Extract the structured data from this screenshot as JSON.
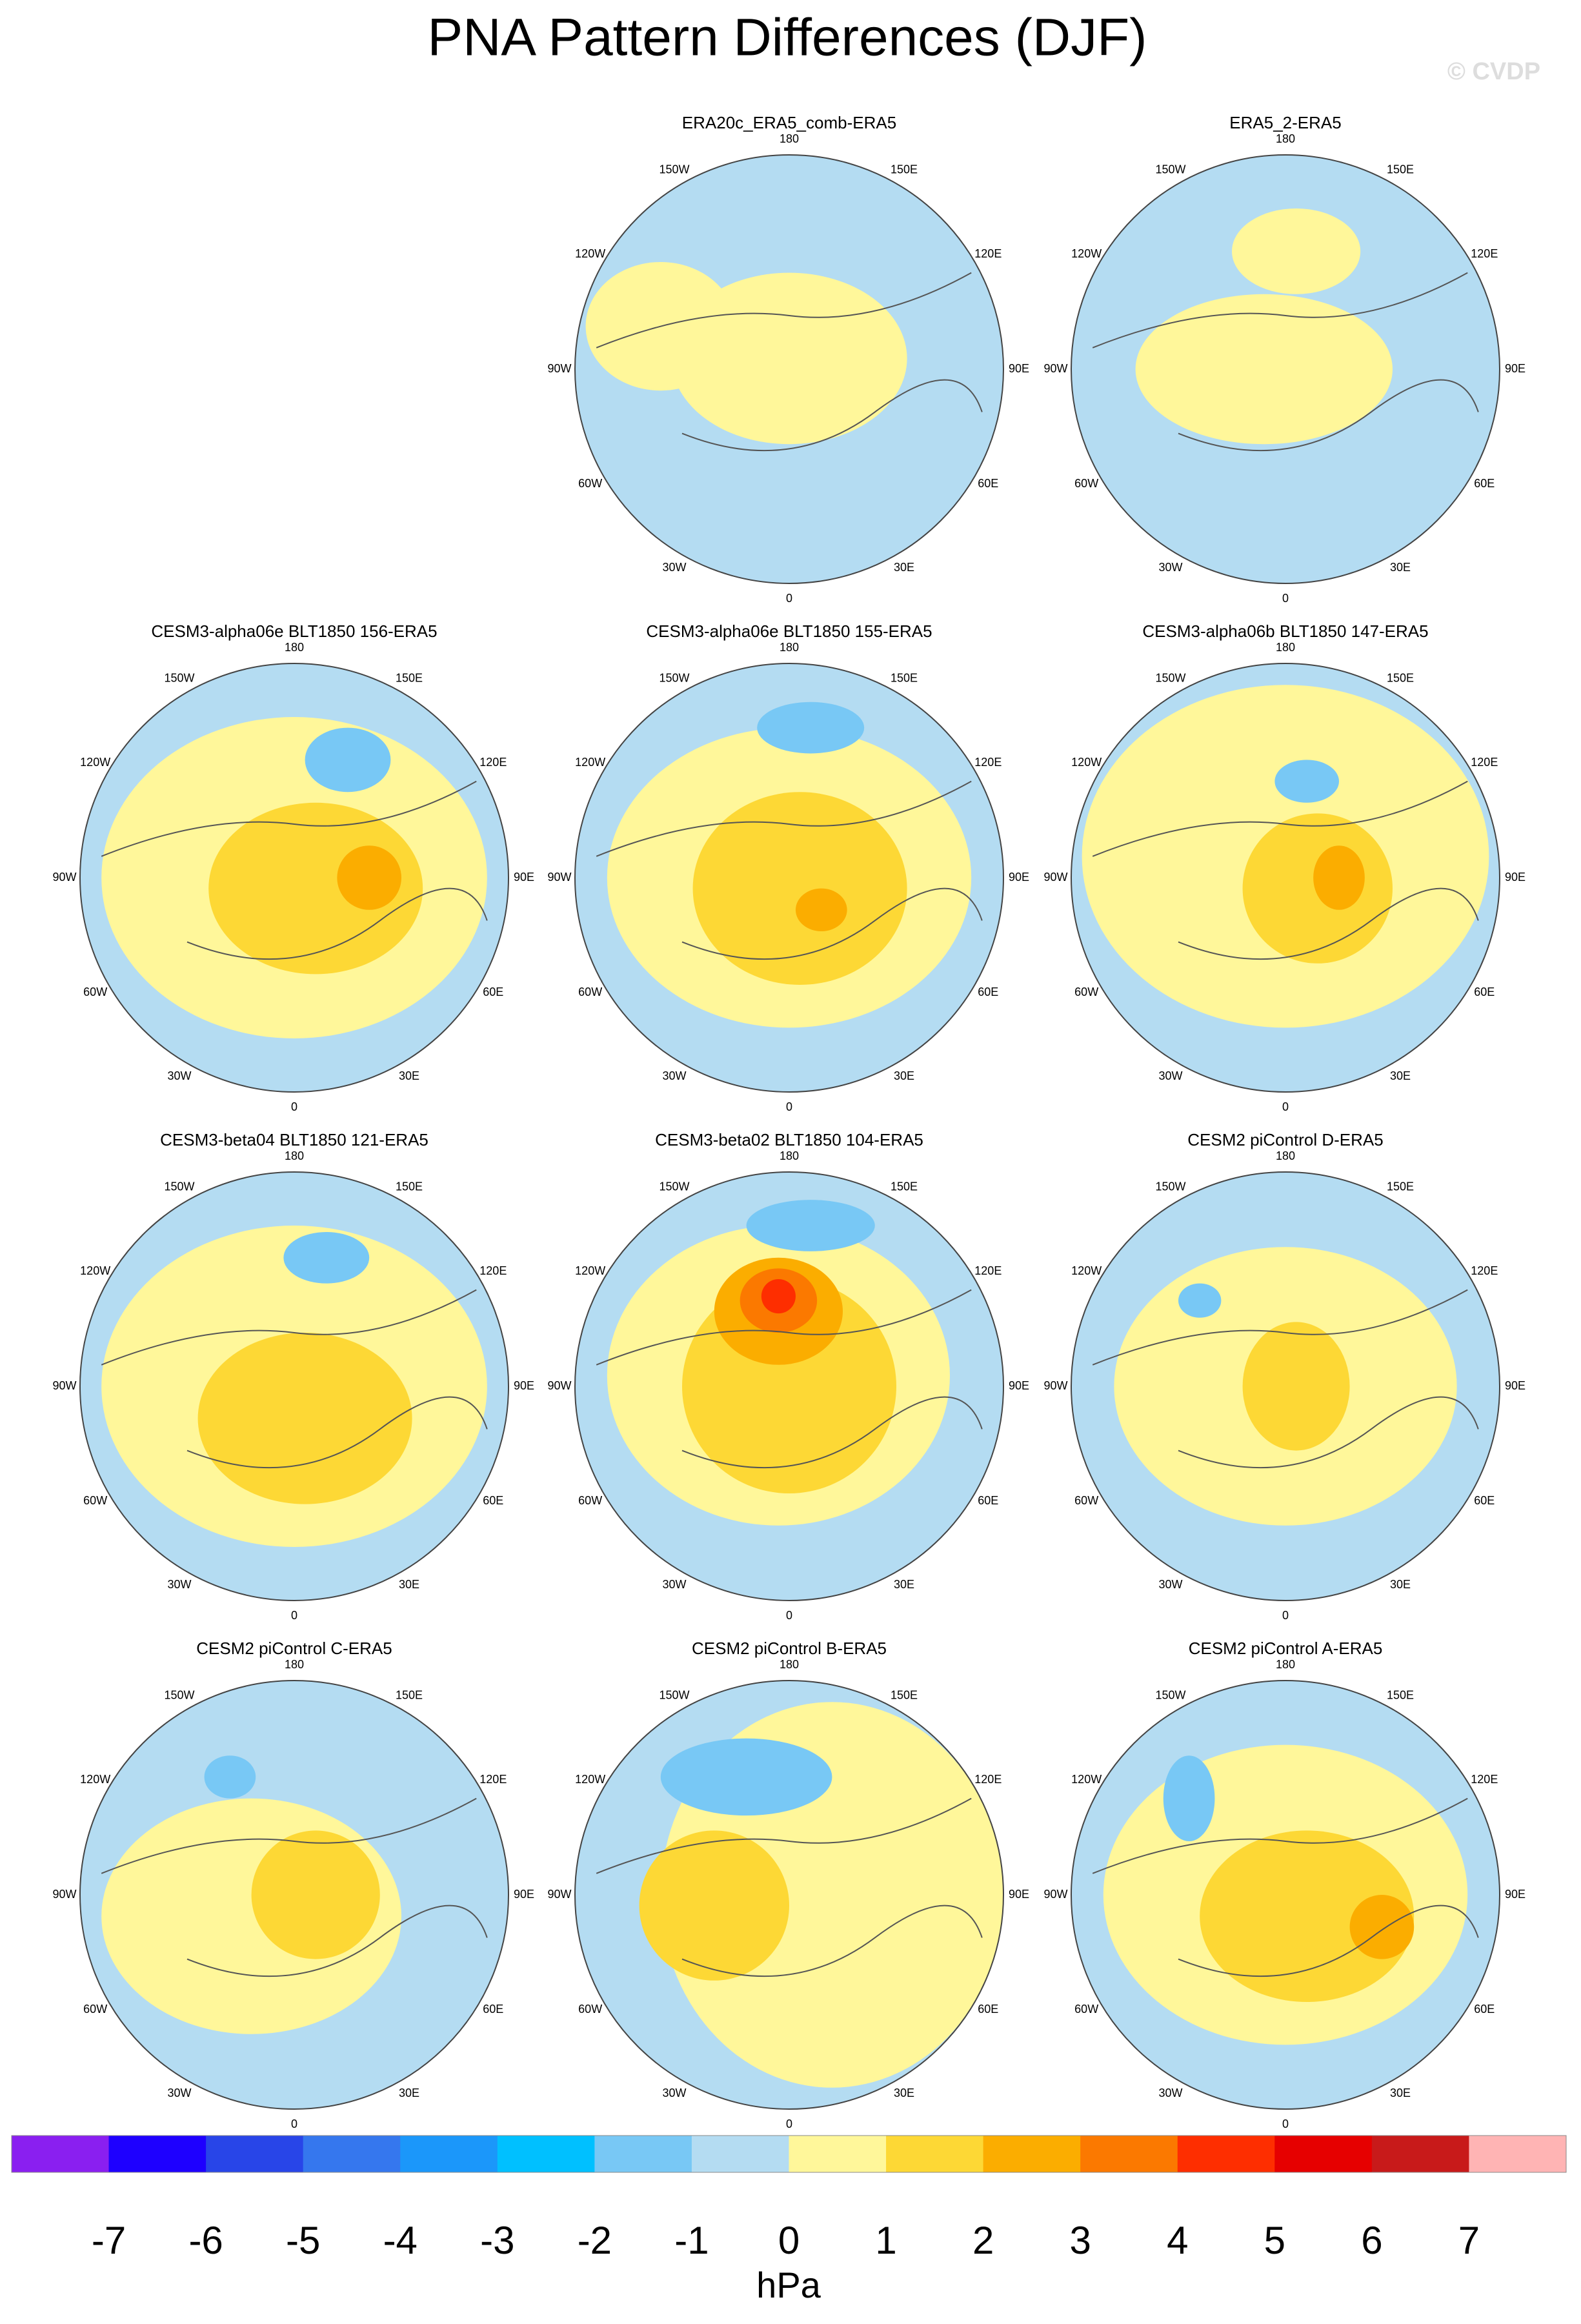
{
  "title": "PNA Pattern Differences (DJF)",
  "watermark": "© CVDP",
  "panels": [
    {
      "title": "ERA20c_ERA5_comb-ERA5"
    },
    {
      "title": "ERA5_2-ERA5"
    },
    {
      "title": "CESM3-alpha06e BLT1850 156-ERA5"
    },
    {
      "title": "CESM3-alpha06e BLT1850 155-ERA5"
    },
    {
      "title": "CESM3-alpha06b BLT1850 147-ERA5"
    },
    {
      "title": "CESM3-beta04 BLT1850 121-ERA5"
    },
    {
      "title": "CESM3-beta02 BLT1850 104-ERA5"
    },
    {
      "title": "CESM2 piControl D-ERA5"
    },
    {
      "title": "CESM2 piControl C-ERA5"
    },
    {
      "title": "CESM2 piControl B-ERA5"
    },
    {
      "title": "CESM2 piControl A-ERA5"
    }
  ],
  "lon_labels": [
    "180",
    "150E",
    "120E",
    "90E",
    "60E",
    "30E",
    "0",
    "30W",
    "60W",
    "90W",
    "120W",
    "150W"
  ],
  "colorbar": {
    "colors": [
      "#8a1ff0",
      "#1e00ff",
      "#2845e8",
      "#3577ee",
      "#1b97fa",
      "#00c0ff",
      "#78c8f5",
      "#b4dcf2",
      "#fff79a",
      "#fdd835",
      "#fbad00",
      "#fb7900",
      "#fe2e00",
      "#e60000",
      "#c81a1a",
      "#ffb4b4"
    ],
    "ticks": [
      -7,
      -6,
      -5,
      -4,
      -3,
      -2,
      -1,
      0,
      1,
      2,
      3,
      4,
      5,
      6,
      7
    ],
    "label": "hPa"
  }
}
